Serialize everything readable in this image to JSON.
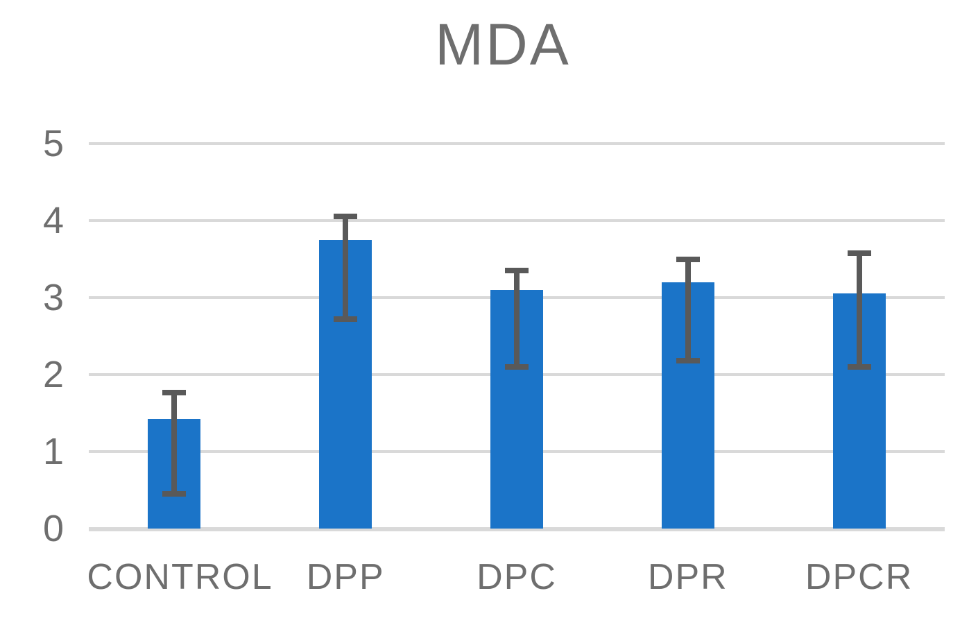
{
  "chart_data": {
    "type": "bar",
    "title": "MDA",
    "categories": [
      "CONTROL",
      "DPP",
      "DPC",
      "DPR",
      "DPCR"
    ],
    "values": [
      1.42,
      3.75,
      3.1,
      3.2,
      3.05
    ],
    "error_low": [
      0.45,
      2.72,
      2.1,
      2.18,
      2.1
    ],
    "error_high": [
      1.77,
      4.05,
      3.35,
      3.5,
      3.58
    ],
    "xlabel": "",
    "ylabel": "",
    "ylim": [
      0,
      5
    ],
    "yticks": [
      0,
      1,
      2,
      3,
      4,
      5
    ],
    "grid": true,
    "legend": "none",
    "colors": {
      "bar": "#1b74c8",
      "error_bar": "#595959",
      "gridline": "#d9d9d9",
      "text": "#6e6e6e",
      "background": "#ffffff"
    }
  }
}
